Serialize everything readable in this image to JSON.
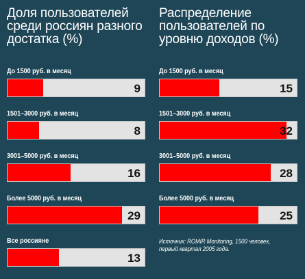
{
  "colors": {
    "background": "#1e4656",
    "bar_fill": "#ff0000",
    "bar_track": "#e3e3e3",
    "text": "#ffffff",
    "value_text": "#111111"
  },
  "chart_data": [
    {
      "type": "bar",
      "orientation": "horizontal",
      "title": "Доля пользователей среди россиян разного достатка (%)",
      "categories": [
        "До 1500 руб. в месяц",
        "1501–3000 руб. в месяц",
        "3001–5000 руб. в месяц",
        "Более 5000 руб. в месяц",
        "Все россияне"
      ],
      "values": [
        9,
        8,
        16,
        29,
        13
      ],
      "xlim": [
        0,
        35
      ],
      "grid": false
    },
    {
      "type": "bar",
      "orientation": "horizontal",
      "title": "Распределение пользователей по уровню доходов (%)",
      "categories": [
        "До 1500 руб. в месяц",
        "1501–3000 руб. в месяц",
        "3001–5000 руб. в месяц",
        "Более 5000 руб. в месяц"
      ],
      "values": [
        15,
        32,
        28,
        25
      ],
      "xlim": [
        0,
        35
      ],
      "grid": false,
      "source": "Источник: ROMIR Monitoring, 1500 человек, первый квартал 2005 года."
    }
  ]
}
